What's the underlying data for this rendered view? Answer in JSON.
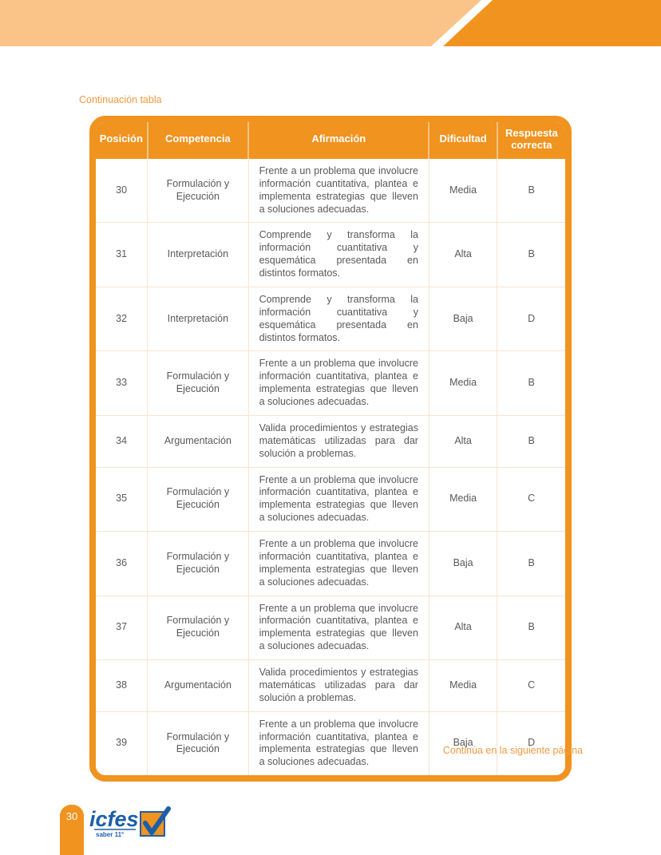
{
  "page": {
    "continuation_label": "Continuación tabla",
    "continues_label": "Continúa en la siguiente página",
    "page_number": "30"
  },
  "logo": {
    "brand": "icfes",
    "subtitle": "saber 11°"
  },
  "colors": {
    "orange": "#F0931F",
    "peach_band": "#FAC489",
    "label_orange": "#F0993F",
    "body_text": "#58595B",
    "logo_blue": "#1C5FA8",
    "cell_border": "#F7E3D0"
  },
  "table": {
    "headers": [
      "Posición",
      "Competencia",
      "Afirmación",
      "Dificultad",
      "Respuesta correcta"
    ],
    "rows": [
      {
        "posicion": "30",
        "competencia": "Formulación y Ejecución",
        "afirmacion": "Frente a un problema que involucre información cuantitativa, plantea e implementa estrategias que lleven a soluciones adecuadas.",
        "dificultad": "Media",
        "respuesta": "B"
      },
      {
        "posicion": "31",
        "competencia": "Interpretación",
        "afirmacion": "Comprende y transforma la información cuantitativa y esquemática presentada en distintos formatos.",
        "dificultad": "Alta",
        "respuesta": "B"
      },
      {
        "posicion": "32",
        "competencia": "Interpretación",
        "afirmacion": "Comprende y transforma la información cuantitativa y esquemática presentada en distintos formatos.",
        "dificultad": "Baja",
        "respuesta": "D"
      },
      {
        "posicion": "33",
        "competencia": "Formulación y Ejecución",
        "afirmacion": "Frente a un problema que involucre información cuantitativa, plantea e implementa estrategias que lleven a soluciones adecuadas.",
        "dificultad": "Media",
        "respuesta": "B"
      },
      {
        "posicion": "34",
        "competencia": "Argumentación",
        "afirmacion": "Valida procedimientos y estrategias matemáticas utilizadas para dar solución a problemas.",
        "dificultad": "Alta",
        "respuesta": "B"
      },
      {
        "posicion": "35",
        "competencia": "Formulación y Ejecución",
        "afirmacion": "Frente a un problema que involucre información cuantitativa, plantea e implementa estrategias que lleven a soluciones adecuadas.",
        "dificultad": "Media",
        "respuesta": "C"
      },
      {
        "posicion": "36",
        "competencia": "Formulación y Ejecución",
        "afirmacion": "Frente a un problema que involucre información cuantitativa, plantea e implementa estrategias que lleven a soluciones adecuadas.",
        "dificultad": "Baja",
        "respuesta": "B"
      },
      {
        "posicion": "37",
        "competencia": "Formulación y Ejecución",
        "afirmacion": "Frente a un problema que involucre información cuantitativa, plantea e implementa estrategias que lleven a soluciones adecuadas.",
        "dificultad": "Alta",
        "respuesta": "B"
      },
      {
        "posicion": "38",
        "competencia": "Argumentación",
        "afirmacion": "Valida procedimientos y estrategias matemáticas utilizadas para dar solución a problemas.",
        "dificultad": "Media",
        "respuesta": "C"
      },
      {
        "posicion": "39",
        "competencia": "Formulación y Ejecución",
        "afirmacion": "Frente a un problema que involucre información cuantitativa, plantea e implementa estrategias que lleven a soluciones adecuadas.",
        "dificultad": "Baja",
        "respuesta": "D"
      }
    ]
  }
}
